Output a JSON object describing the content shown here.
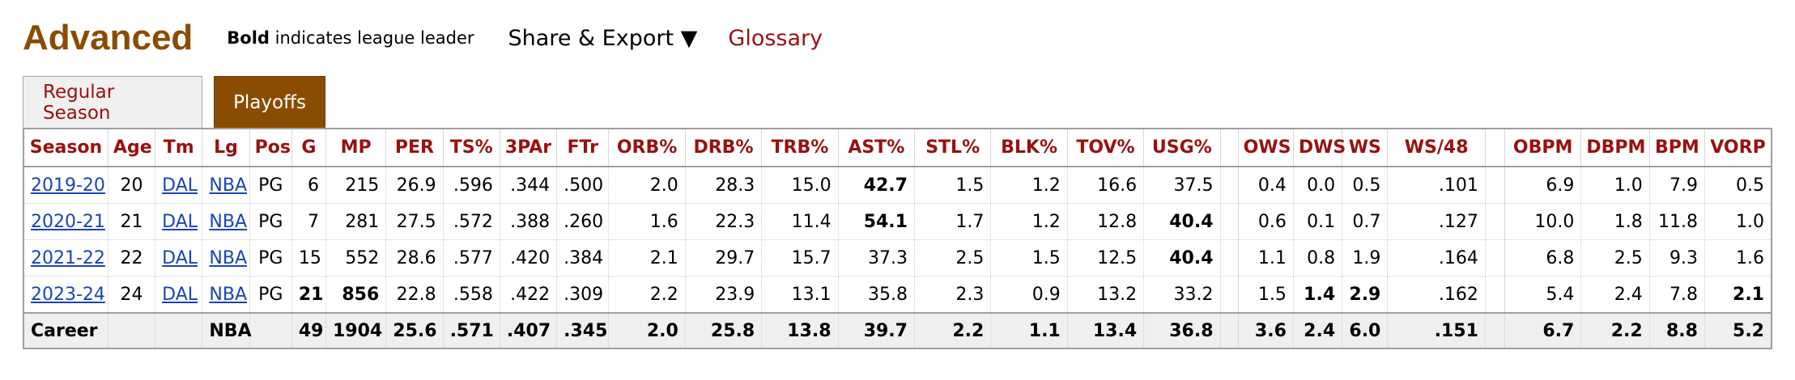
{
  "header": {
    "title": "Advanced",
    "leader_bold": "Bold",
    "leader_rest": " indicates league leader",
    "share_label": "Share & Export ▼",
    "glossary_label": "Glossary"
  },
  "tabs": [
    {
      "label": "Regular Season",
      "active": false
    },
    {
      "label": "Playoffs",
      "active": true
    }
  ],
  "table": {
    "columns": [
      "Season",
      "Age",
      "Tm",
      "Lg",
      "Pos",
      "G",
      "MP",
      "PER",
      "TS%",
      "3PAr",
      "FTr",
      "ORB%",
      "DRB%",
      "TRB%",
      "AST%",
      "STL%",
      "BLK%",
      "TOV%",
      "USG%",
      "",
      "OWS",
      "DWS",
      "WS",
      "WS/48",
      "",
      "OBPM",
      "DBPM",
      "BPM",
      "VORP"
    ],
    "rows": [
      {
        "cells": [
          "2019-20",
          "20",
          "DAL",
          "NBA",
          "PG",
          "6",
          "215",
          "26.9",
          ".596",
          ".344",
          ".500",
          "2.0",
          "28.3",
          "15.0",
          "42.7",
          "1.5",
          "1.2",
          "16.6",
          "37.5",
          "",
          "0.4",
          "0.0",
          "0.5",
          ".101",
          "",
          "6.9",
          "1.0",
          "7.9",
          "0.5"
        ],
        "bold": [
          14
        ]
      },
      {
        "cells": [
          "2020-21",
          "21",
          "DAL",
          "NBA",
          "PG",
          "7",
          "281",
          "27.5",
          ".572",
          ".388",
          ".260",
          "1.6",
          "22.3",
          "11.4",
          "54.1",
          "1.7",
          "1.2",
          "12.8",
          "40.4",
          "",
          "0.6",
          "0.1",
          "0.7",
          ".127",
          "",
          "10.0",
          "1.8",
          "11.8",
          "1.0"
        ],
        "bold": [
          14,
          18
        ]
      },
      {
        "cells": [
          "2021-22",
          "22",
          "DAL",
          "NBA",
          "PG",
          "15",
          "552",
          "28.6",
          ".577",
          ".420",
          ".384",
          "2.1",
          "29.7",
          "15.7",
          "37.3",
          "2.5",
          "1.5",
          "12.5",
          "40.4",
          "",
          "1.1",
          "0.8",
          "1.9",
          ".164",
          "",
          "6.8",
          "2.5",
          "9.3",
          "1.6"
        ],
        "bold": [
          18
        ]
      },
      {
        "cells": [
          "2023-24",
          "24",
          "DAL",
          "NBA",
          "PG",
          "21",
          "856",
          "22.8",
          ".558",
          ".422",
          ".309",
          "2.2",
          "23.9",
          "13.1",
          "35.8",
          "2.3",
          "0.9",
          "13.2",
          "33.2",
          "",
          "1.5",
          "1.4",
          "2.9",
          ".162",
          "",
          "5.4",
          "2.4",
          "7.8",
          "2.1"
        ],
        "bold": [
          5,
          6,
          21,
          22,
          28
        ]
      }
    ],
    "career": {
      "cells": [
        "Career",
        "",
        "",
        "NBA",
        "",
        "49",
        "1904",
        "25.6",
        ".571",
        ".407",
        ".345",
        "2.0",
        "25.8",
        "13.8",
        "39.7",
        "2.2",
        "1.1",
        "13.4",
        "36.8",
        "",
        "3.6",
        "2.4",
        "6.0",
        ".151",
        "",
        "6.7",
        "2.2",
        "8.8",
        "5.2"
      ]
    }
  }
}
